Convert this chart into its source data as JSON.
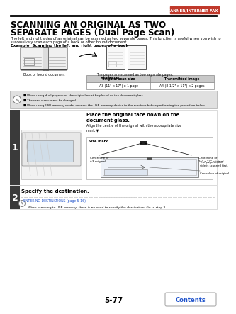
{
  "page_num": "5-77",
  "header_text": "SCANNER/INTERNET FAX",
  "header_bar_color": "#c0392b",
  "title_line1": "SCANNING AN ORIGINAL AS TWO",
  "title_line2": "SEPARATE PAGES (Dual Page Scan)",
  "body_text1": "The left and right sides of an original can be scanned as two separate pages. This function is useful when you wish to\nsuccessively scan each page of a book or other bound document.",
  "example_label": "Example: Scanning the left and right pages of a book",
  "book_label": "Book or bound document",
  "pages_label": "The pages are scanned as two separate pages.",
  "example_sub": "Example:",
  "table_headers": [
    "Original scan size",
    "Transmitted image"
  ],
  "table_row": [
    "A3 (11\" x 17\") x 1 page",
    "A4 (8-1/2\" x 11\") x 2 pages"
  ],
  "notes": [
    "When using dual page scan, the original must be placed on the document glass.",
    "The send size cannot be changed.",
    "When using USB memory mode, connect the USB memory device to the machine before performing the procedure below."
  ],
  "step1_title": "Place the original face down on the\ndocument glass.",
  "step1_body": "Align the centre of the original with the appropriate size\nmark ▼",
  "size_mark_label": "Size mark",
  "centreline_a3": "Centreline of\nA3 original",
  "centreline_11x17": "Centreline of\n11\" x 17\" original",
  "page_note": "The page on this\nside is scanned first.",
  "centreline_orig": "Centreline of original",
  "step2_title": "Specify the destination.",
  "step2_link": "ENTERING DESTINATIONS (page 5-16)",
  "step2_note": "When scanning to USB memory, there is no need to specify the destination. Go to step 3.",
  "contents_btn": "Contents",
  "bg_color": "#ffffff",
  "text_color": "#000000",
  "red_color": "#c0392b",
  "blue_color": "#2255cc",
  "step_bg": "#3a3a3a",
  "step_text": "#ffffff",
  "note_bg": "#e0e0e0",
  "table_header_bg": "#c8c8c8",
  "step1_num": "1",
  "step2_num": "2"
}
